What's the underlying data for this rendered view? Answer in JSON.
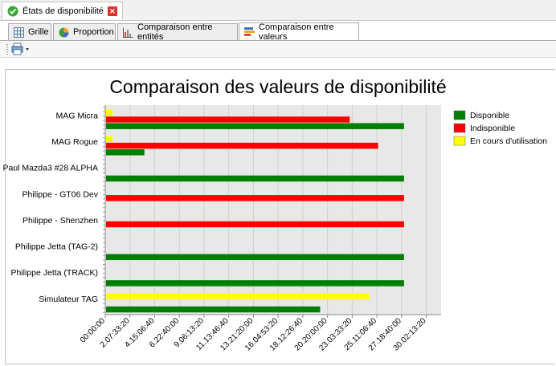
{
  "window": {
    "doc_tab_label": "États de disponibilité"
  },
  "tabs": [
    {
      "label": "Grille",
      "icon": "grid-icon"
    },
    {
      "label": "Proportion",
      "icon": "pie-chart-icon"
    },
    {
      "label": "Comparaison entre entités",
      "icon": "column-chart-icon"
    },
    {
      "label": "Comparaison entre valeurs",
      "icon": "bar-chart-icon",
      "active": true
    }
  ],
  "toolbar": {
    "print_icon": "printer-icon",
    "dropdown_icon": "chevron-down-icon"
  },
  "colors": {
    "Disponible": "#008000",
    "Indisponible": "#ff0000",
    "En cours d'utilisation": "#ffff00"
  },
  "chart_data": {
    "type": "bar",
    "orientation": "horizontal",
    "title": "Comparaison des valeurs de disponibilité",
    "xlabel": "",
    "ylabel": "",
    "categories": [
      "MAG Micra",
      "MAG Rogue",
      "Paul Mazda3 #28 ALPHA",
      "Philippe - GT06 Dev",
      "Philippe - Shenzhen",
      "Philippe Jetta (TAG-2)",
      "Philippe Jetta (TRACK)",
      "Simulateur TAG"
    ],
    "series": [
      {
        "name": "Disponible",
        "values_seconds": [
          2420000,
          317000,
          2420000,
          0,
          0,
          2420000,
          2420000,
          1740000
        ]
      },
      {
        "name": "Indisponible",
        "values_seconds": [
          1980000,
          2210000,
          0,
          2420000,
          2420000,
          0,
          0,
          0
        ]
      },
      {
        "name": "En cours d'utilisation",
        "values_seconds": [
          60000,
          60000,
          0,
          0,
          0,
          0,
          0,
          2140000
        ]
      }
    ],
    "xlim": [
      0,
      2720000
    ],
    "x_tick_labels": [
      "00:00:00",
      "2.07:33:20",
      "4.15:06:40",
      "6.22:40:00",
      "9.06:13:20",
      "11.13:46:40",
      "13.21:20:00",
      "16.04:53:20",
      "18.12:26:40",
      "20.20:00:00",
      "23.03:33:20",
      "25.11:06:40",
      "27.18:40:00",
      "30.02:13:20"
    ],
    "legend_position": "right",
    "grid": true
  }
}
